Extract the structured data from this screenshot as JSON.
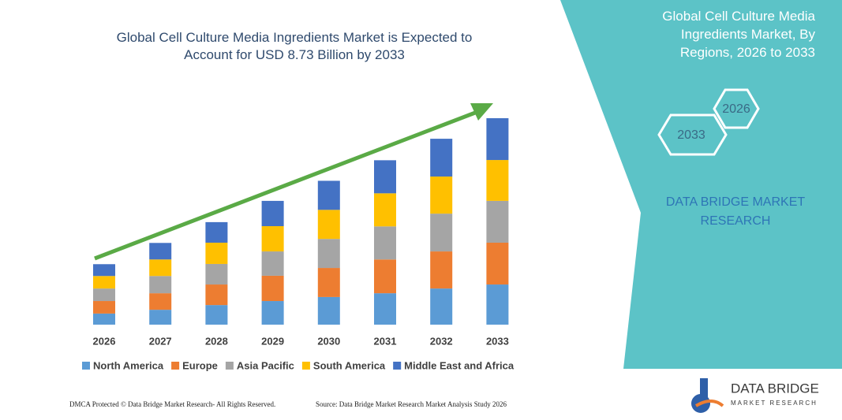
{
  "chart_data": {
    "type": "bar",
    "stacked": true,
    "title": "Global Cell Culture Media Ingredients Market is Expected to Account for USD 8.73 Billion by 2033",
    "categories": [
      "2026",
      "2027",
      "2028",
      "2029",
      "2030",
      "2031",
      "2032",
      "2033"
    ],
    "series": [
      {
        "name": "North America",
        "color": "#5b9bd5",
        "values": [
          0.47,
          0.63,
          0.83,
          1.0,
          1.17,
          1.33,
          1.53,
          1.7
        ]
      },
      {
        "name": "Europe",
        "color": "#ed7d31",
        "values": [
          0.53,
          0.7,
          0.87,
          1.07,
          1.23,
          1.43,
          1.57,
          1.77
        ]
      },
      {
        "name": "Asia Pacific",
        "color": "#a5a5a5",
        "values": [
          0.53,
          0.73,
          0.87,
          1.03,
          1.23,
          1.4,
          1.6,
          1.77
        ]
      },
      {
        "name": "South America",
        "color": "#ffc000",
        "values": [
          0.53,
          0.7,
          0.9,
          1.07,
          1.23,
          1.4,
          1.57,
          1.73
        ]
      },
      {
        "name": "Middle East and Africa",
        "color": "#4472c4",
        "values": [
          0.5,
          0.7,
          0.87,
          1.07,
          1.23,
          1.4,
          1.6,
          1.77
        ]
      }
    ],
    "legend": "bottom"
  },
  "panel": {
    "title": "Global Cell Culture Media Ingredients Market, By Regions, 2026 to 2033",
    "hex_labels": [
      "2026",
      "2033"
    ],
    "brand": "DATA BRIDGE MARKET RESEARCH"
  },
  "logo": {
    "name": "DATA BRIDGE",
    "tagline": "MARKET RESEARCH"
  },
  "footer": {
    "left": "DMCA Protected © Data Bridge Market Research- All Rights Reserved.",
    "right": "Source: Data Bridge Market Research Market Analysis Study 2026"
  }
}
